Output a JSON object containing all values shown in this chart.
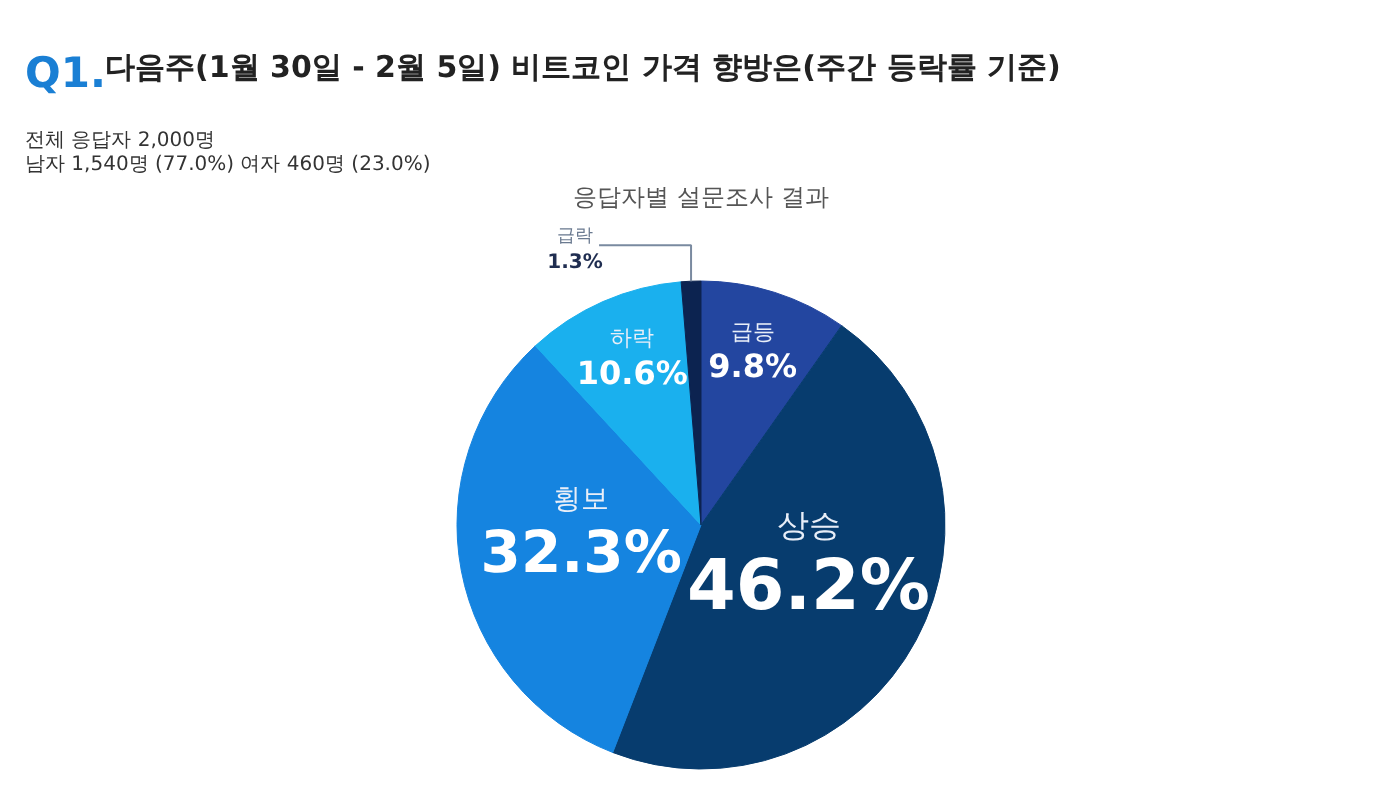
{
  "chart_data": {
    "type": "pie",
    "title": "다음주(1월 30일 - 2월 5일)  비트코인 가격 향방은(주간 등락률 기준)",
    "subtitle": "응답자별 설문조사 결과",
    "annotations": [
      "Q1.",
      "전체 응답자 2,000명",
      "남자 1,540명 (77.0%) 여자 460명 (23.0%)"
    ],
    "categories": [
      "급등",
      "상승",
      "횡보",
      "하락",
      "급락"
    ],
    "values": [
      9.8,
      46.2,
      32.3,
      10.6,
      1.3
    ],
    "value_labels": [
      "9.8%",
      "46.2%",
      "32.3%",
      "10.6%",
      "1.3%"
    ],
    "colors": [
      "#2346a0",
      "#073c6e",
      "#1584e0",
      "#1ab0ee",
      "#0c2350"
    ]
  }
}
